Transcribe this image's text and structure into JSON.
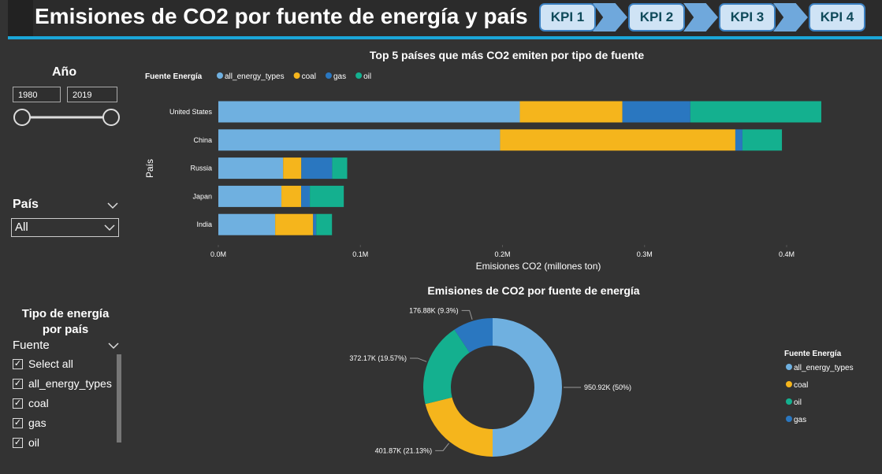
{
  "header": {
    "title": "Emisiones de CO2 por fuente de energía y país"
  },
  "nav": [
    "KPI 1",
    "KPI 2",
    "KPI 3",
    "KPI 4"
  ],
  "filters": {
    "year": {
      "title": "Año",
      "start": 1980,
      "end": 2019
    },
    "country": {
      "title": "País",
      "selected": "All"
    },
    "energy": {
      "title": "Tipo de energía por país",
      "field": "Fuente",
      "options": [
        "Select all",
        "all_energy_types",
        "coal",
        "gas",
        "oil"
      ]
    }
  },
  "chart_data": [
    {
      "type": "bar",
      "orientation": "horizontal",
      "stacked": true,
      "title": "Top 5 países que más CO2 emiten por tipo de fuente",
      "legend_title": "Fuente Energía",
      "x_label": "Emisiones CO2 (millones ton)",
      "y_label": "País",
      "categories": [
        "United States",
        "China",
        "Russia",
        "Japan",
        "India"
      ],
      "series": [
        {
          "name": "all_energy_types",
          "color": "#6fb0e0",
          "values": [
            212200,
            198300,
            45600,
            44400,
            40000
          ]
        },
        {
          "name": "coal",
          "color": "#f5b51c",
          "values": [
            72200,
            165600,
            12800,
            13900,
            26700
          ]
        },
        {
          "name": "gas",
          "color": "#2a77c0",
          "values": [
            47800,
            5000,
            21700,
            6100,
            2200
          ]
        },
        {
          "name": "oil",
          "color": "#14b08f",
          "values": [
            92200,
            27800,
            10600,
            23900,
            11100
          ]
        }
      ],
      "xlim": [
        0,
        430000
      ],
      "xticks": [
        {
          "value": 0,
          "label": "0.0M"
        },
        {
          "value": 100000,
          "label": "0.1M"
        },
        {
          "value": 200000,
          "label": "0.2M"
        },
        {
          "value": 300000,
          "label": "0.3M"
        },
        {
          "value": 400000,
          "label": "0.4M"
        }
      ],
      "grid": false
    },
    {
      "type": "pie",
      "donut": true,
      "title": "Emisiones de CO2 por fuente de energía",
      "legend_title": "Fuente Energía",
      "categories": [
        "all_energy_types",
        "coal",
        "oil",
        "gas"
      ],
      "values": [
        950920,
        401870,
        372170,
        176880
      ],
      "value_labels": [
        "950.92K (50%)",
        "401.87K (21.13%)",
        "372.17K (19.57%)",
        "176.88K (9.3%)"
      ],
      "colors": [
        "#6fb0e0",
        "#f5b51c",
        "#14b08f",
        "#2a77c0"
      ]
    }
  ]
}
